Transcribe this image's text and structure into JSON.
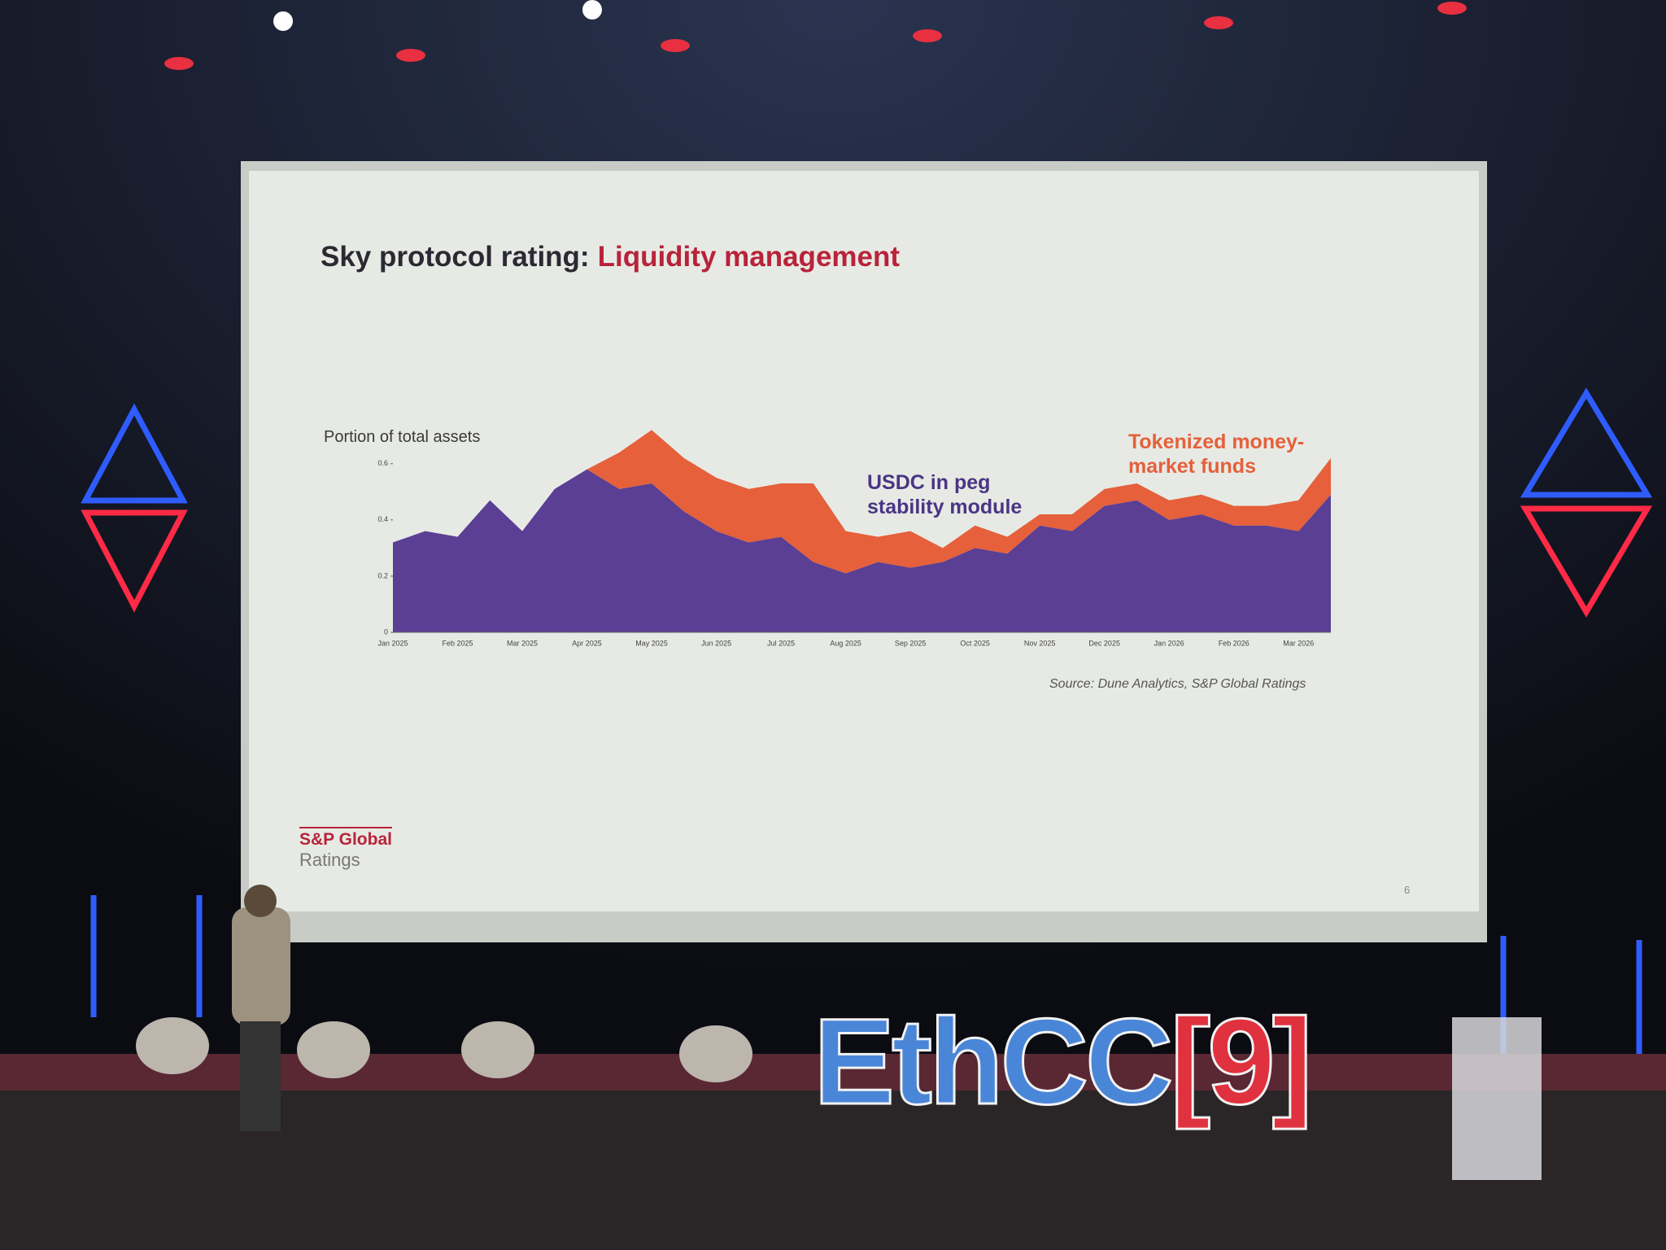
{
  "slide": {
    "source": "Source: Dune Analytics, S&P Global Ratings",
    "logo_line1": "S&P Global",
    "logo_line2": "Ratings",
    "page_number": "6"
  },
  "stage": {
    "sign_left": "EthCC",
    "sign_right": "[9]"
  },
  "chart_data": {
    "type": "area",
    "stacked": true,
    "title": "Sky protocol rating:",
    "title_highlight": "Liquidity management",
    "ylabel": "Portion of total assets",
    "categories": [
      "Jan 2025",
      null,
      "Feb 2025",
      null,
      "Mar 2025",
      null,
      "Apr 2025",
      null,
      "May 2025",
      null,
      "Jun 2025",
      null,
      "Jul 2025",
      null,
      "Aug 2025",
      null,
      "Sep 2025",
      null,
      "Oct 2025",
      null,
      "Nov 2025",
      null,
      "Dec 2025",
      null,
      "Jan 2026",
      null,
      "Feb 2026",
      null,
      "Mar 2026",
      null
    ],
    "series": [
      {
        "name": "USDC in peg stability module",
        "color": "#5a3f94",
        "values": [
          0.32,
          0.36,
          0.34,
          0.47,
          0.36,
          0.51,
          0.58,
          0.51,
          0.53,
          0.43,
          0.36,
          0.32,
          0.34,
          0.25,
          0.21,
          0.25,
          0.23,
          0.25,
          0.3,
          0.28,
          0.38,
          0.36,
          0.45,
          0.47,
          0.4,
          0.42,
          0.38,
          0.38,
          0.36,
          0.49
        ]
      },
      {
        "name": "Tokenized money-market funds",
        "color": "#e5603b",
        "values": [
          0,
          0,
          0,
          0,
          0,
          0,
          0,
          0.13,
          0.19,
          0.19,
          0.19,
          0.19,
          0.19,
          0.28,
          0.15,
          0.09,
          0.13,
          0.05,
          0.08,
          0.06,
          0.04,
          0.06,
          0.06,
          0.06,
          0.07,
          0.07,
          0.07,
          0.07,
          0.11,
          0.13
        ]
      }
    ],
    "ylim": [
      0,
      0.75
    ],
    "yticks": [
      0,
      0.2,
      0.4,
      0.6
    ]
  }
}
